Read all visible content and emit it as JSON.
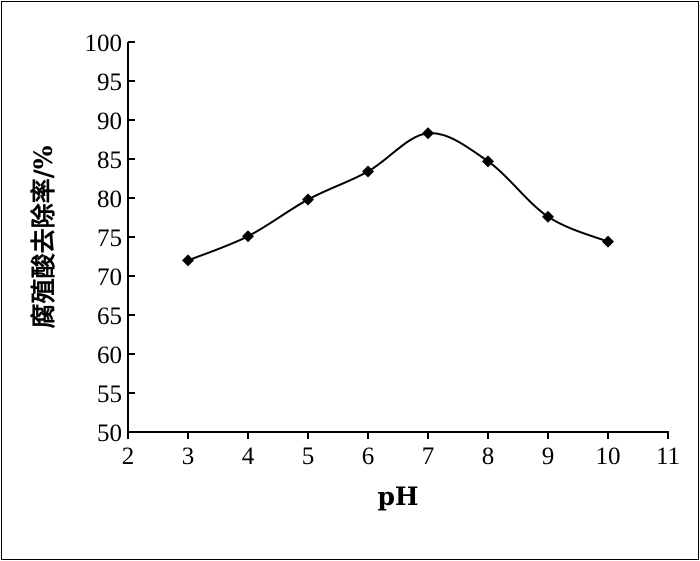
{
  "chart_data": {
    "type": "line",
    "title": "",
    "xlabel": "pH",
    "ylabel": "腐殖酸去除率/%",
    "xlim": [
      2,
      11
    ],
    "ylim": [
      50,
      100
    ],
    "xticks": [
      2,
      3,
      4,
      5,
      6,
      7,
      8,
      9,
      10,
      11
    ],
    "yticks": [
      50,
      55,
      60,
      65,
      70,
      75,
      80,
      85,
      90,
      95,
      100
    ],
    "grid": false,
    "series": [
      {
        "marker": "diamond",
        "color": "#000000",
        "smooth": true,
        "x": [
          3,
          4,
          5,
          6,
          7,
          8,
          9,
          10
        ],
        "y": [
          72.0,
          75.1,
          79.8,
          83.4,
          88.3,
          84.7,
          77.6,
          74.4
        ]
      }
    ]
  }
}
